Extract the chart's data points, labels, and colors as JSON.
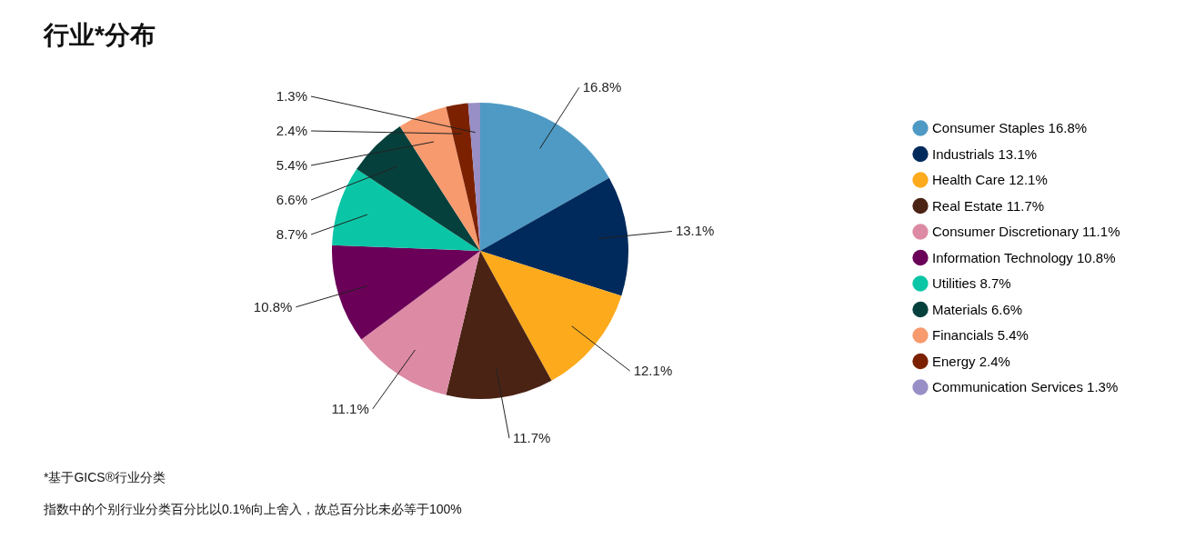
{
  "chart_data": {
    "type": "pie",
    "title": "行业*分布",
    "categories": [
      "Consumer Staples",
      "Industrials",
      "Health Care",
      "Real Estate",
      "Consumer Discretionary",
      "Information Technology",
      "Utilities",
      "Materials",
      "Financials",
      "Energy",
      "Communication Services"
    ],
    "values": [
      16.8,
      13.1,
      12.1,
      11.7,
      11.1,
      10.8,
      8.7,
      6.6,
      5.4,
      2.4,
      1.3
    ],
    "value_labels": [
      "16.8%",
      "13.1%",
      "12.1%",
      "11.7%",
      "11.1%",
      "10.8%",
      "8.7%",
      "6.6%",
      "5.4%",
      "2.4%",
      "1.3%"
    ],
    "colors": [
      "#4e9ac4",
      "#002a5c",
      "#fdaa1c",
      "#4a2314",
      "#dd8aa5",
      "#6a0058",
      "#0bc6a6",
      "#06403c",
      "#f79a6e",
      "#7b2100",
      "#978fc6"
    ],
    "legend": "right",
    "annotations": [
      "*基于GICS®行业分类",
      "指数中的个别行业分类百分比以0.1%向上舍入，故总百分比未必等于100%"
    ]
  }
}
